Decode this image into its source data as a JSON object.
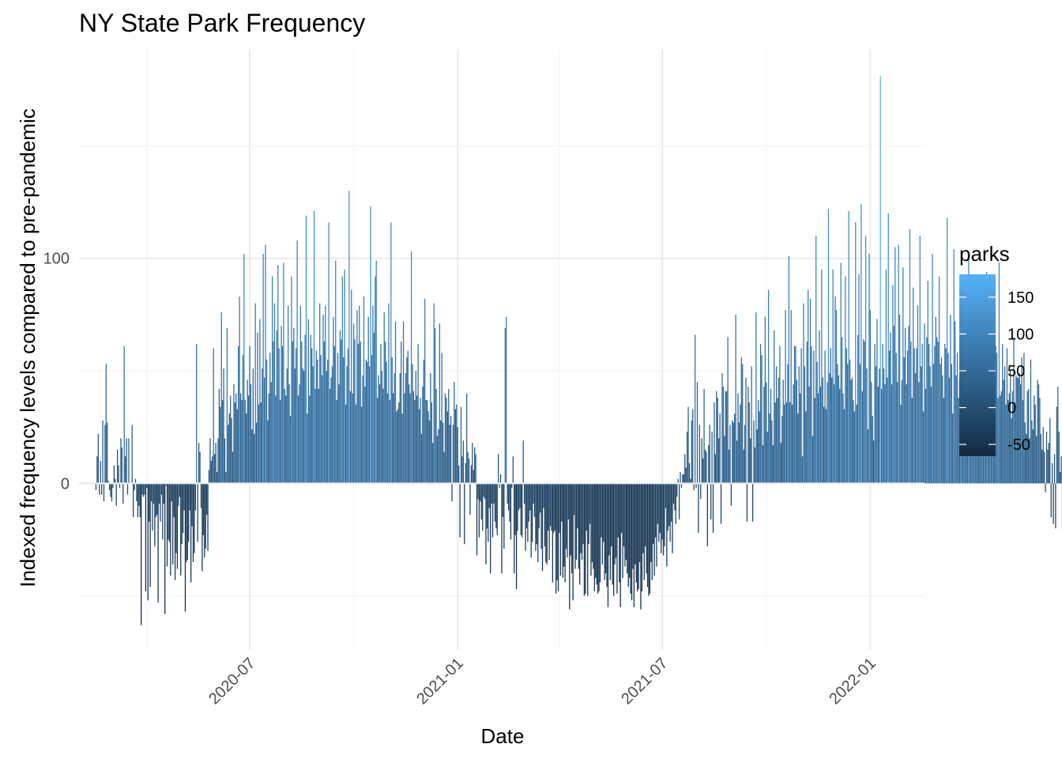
{
  "chart_data": {
    "type": "bar",
    "title": "NY State Park Frequency",
    "xlabel": "Date",
    "ylabel": "Indexed frequency levels compared to pre-pandemic",
    "x_tick_labels": [
      "2020-07",
      "2021-01",
      "2021-07",
      "2022-01"
    ],
    "x_tick_dates": [
      "2020-07-01",
      "2021-01-01",
      "2021-07-01",
      "2022-01-01"
    ],
    "y_tick_labels": [
      "0",
      "100"
    ],
    "y_tick_values": [
      0,
      100
    ],
    "ylim": [
      -74,
      193
    ],
    "xlim": [
      "2020-02-01",
      "2022-02-18"
    ],
    "grid": true,
    "legend": {
      "title": "parks",
      "position": "right",
      "labels": [
        "150",
        "100",
        "50",
        "0",
        "-50"
      ],
      "values": [
        150,
        100,
        50,
        0,
        -50
      ],
      "range": [
        -66,
        181
      ],
      "color_low": "#132b43",
      "color_high": "#56b1f7"
    },
    "date_start": "2020-02-16",
    "date_end": "2022-02-06",
    "values": [
      -3,
      12,
      22,
      -5,
      10,
      -5,
      28,
      -8,
      26,
      53,
      27,
      1,
      -3,
      -6,
      -8,
      -2,
      8,
      2,
      -10,
      15,
      8,
      -2,
      20,
      16,
      -9,
      61,
      12,
      20,
      -5,
      20,
      0,
      0,
      26,
      -15,
      -3,
      2,
      -8,
      -15,
      -10,
      -15,
      -63,
      -5,
      -6,
      -5,
      -48,
      -2,
      -52,
      -17,
      -46,
      -8,
      -21,
      -9,
      -28,
      -15,
      -14,
      -53,
      -9,
      -17,
      -5,
      -25,
      -9,
      -58,
      -1,
      -37,
      -25,
      -26,
      -41,
      -8,
      -36,
      -15,
      -43,
      -31,
      -38,
      -10,
      -6,
      -41,
      -27,
      -22,
      -12,
      -57,
      -35,
      -34,
      -26,
      -12,
      -44,
      -19,
      -35,
      -31,
      -12,
      62,
      -26,
      18,
      14,
      -11,
      -39,
      -23,
      -33,
      -29,
      -14,
      -30,
      6,
      20,
      10,
      12,
      60,
      13,
      18,
      5,
      20,
      42,
      34,
      76,
      37,
      51,
      20,
      5,
      69,
      26,
      31,
      39,
      29,
      14,
      44,
      36,
      40,
      33,
      61,
      83,
      40,
      37,
      57,
      102,
      37,
      31,
      46,
      39,
      61,
      44,
      24,
      51,
      22,
      80,
      27,
      67,
      35,
      73,
      36,
      51,
      102,
      47,
      106,
      55,
      28,
      40,
      58,
      45,
      92,
      63,
      80,
      39,
      68,
      97,
      60,
      37,
      70,
      61,
      98,
      42,
      39,
      51,
      79,
      44,
      30,
      92,
      63,
      69,
      51,
      60,
      108,
      39,
      44,
      79,
      63,
      51,
      50,
      66,
      119,
      31,
      73,
      39,
      66,
      60,
      52,
      121,
      42,
      59,
      55,
      42,
      80,
      57,
      48,
      75,
      63,
      79,
      50,
      55,
      116,
      42,
      47,
      52,
      74,
      61,
      99,
      37,
      58,
      44,
      68,
      64,
      92,
      56,
      95,
      35,
      52,
      60,
      130,
      41,
      86,
      40,
      71,
      64,
      35,
      77,
      62,
      79,
      63,
      34,
      48,
      83,
      43,
      55,
      54,
      74,
      52,
      123,
      57,
      79,
      67,
      92,
      99,
      38,
      48,
      44,
      62,
      50,
      42,
      76,
      63,
      54,
      40,
      80,
      37,
      116,
      56,
      40,
      49,
      72,
      32,
      33,
      36,
      49,
      63,
      31,
      72,
      40,
      49,
      56,
      59,
      44,
      40,
      103,
      53,
      41,
      37,
      50,
      39,
      62,
      33,
      38,
      22,
      43,
      55,
      82,
      37,
      37,
      32,
      28,
      49,
      36,
      18,
      80,
      69,
      42,
      21,
      24,
      71,
      28,
      58,
      27,
      14,
      40,
      38,
      32,
      42,
      26,
      30,
      -8,
      26,
      45,
      33,
      35,
      25,
      8,
      -24,
      34,
      12,
      19,
      -27,
      9,
      40,
      14,
      11,
      -14,
      8,
      18,
      6,
      16,
      13,
      -32,
      -7,
      -24,
      -8,
      -16,
      -21,
      -6,
      -7,
      -36,
      -20,
      -26,
      -11,
      -40,
      -9,
      -24,
      -9,
      -17,
      -20,
      -23,
      13,
      -2,
      4,
      -40,
      -15,
      -29,
      69,
      74,
      -9,
      -12,
      -17,
      -25,
      -2,
      12,
      -40,
      -23,
      -47,
      -21,
      -12,
      -11,
      -23,
      -24,
      19,
      -9,
      -30,
      -20,
      -26,
      -17,
      -12,
      -33,
      -26,
      -9,
      -15,
      -30,
      -27,
      -35,
      -20,
      -13,
      -29,
      -39,
      -11,
      -28,
      -35,
      -36,
      -21,
      -34,
      -19,
      -21,
      -44,
      -22,
      -21,
      -49,
      -43,
      -48,
      -22,
      -41,
      -17,
      -42,
      -37,
      -44,
      -29,
      -33,
      -16,
      -56,
      -32,
      -40,
      -52,
      -14,
      -38,
      -34,
      -20,
      -38,
      -45,
      -31,
      -34,
      -27,
      -50,
      -49,
      -21,
      -50,
      -27,
      -18,
      -41,
      -35,
      -38,
      -48,
      -42,
      -45,
      -49,
      -48,
      -44,
      -24,
      -36,
      -26,
      -43,
      -40,
      -46,
      -55,
      -32,
      -43,
      -28,
      -45,
      -50,
      -36,
      -33,
      -49,
      -24,
      -44,
      -55,
      -22,
      -42,
      -28,
      -37,
      -34,
      -40,
      -46,
      -42,
      -49,
      -52,
      -38,
      -55,
      -36,
      -44,
      -48,
      -47,
      -35,
      -56,
      -48,
      -31,
      -43,
      -28,
      -40,
      -46,
      -50,
      -49,
      -35,
      -43,
      -27,
      -41,
      -24,
      -37,
      -18,
      -26,
      -22,
      -31,
      -25,
      -32,
      -28,
      -11,
      -37,
      -21,
      -19,
      -26,
      -17,
      -31,
      -9,
      -12,
      -18,
      -6,
      2,
      -16,
      5,
      -2,
      4,
      4,
      13,
      7,
      23,
      34,
      9,
      2,
      28,
      33,
      -3,
      66,
      -2,
      45,
      -22,
      26,
      -7,
      20,
      11,
      42,
      15,
      14,
      -28,
      17,
      26,
      -16,
      23,
      -22,
      36,
      13,
      41,
      38,
      20,
      31,
      -18,
      49,
      43,
      21,
      41,
      41,
      65,
      15,
      26,
      -10,
      28,
      27,
      31,
      75,
      19,
      40,
      27,
      35,
      56,
      53,
      15,
      26,
      47,
      -17,
      43,
      36,
      20,
      52,
      -17,
      28,
      16,
      76,
      24,
      37,
      32,
      62,
      57,
      17,
      43,
      74,
      45,
      23,
      86,
      31,
      42,
      28,
      17,
      68,
      36,
      52,
      38,
      47,
      61,
      18,
      30,
      46,
      35,
      77,
      36,
      53,
      101,
      36,
      77,
      35,
      44,
      61,
      61,
      46,
      31,
      52,
      40,
      60,
      12,
      80,
      52,
      32,
      63,
      86,
      43,
      82,
      61,
      21,
      59,
      38,
      110,
      54,
      40,
      68,
      43,
      95,
      47,
      34,
      59,
      33,
      45,
      122,
      49,
      60,
      47,
      95,
      44,
      83,
      77,
      53,
      48,
      42,
      98,
      65,
      40,
      33,
      92,
      60,
      53,
      121,
      55,
      46,
      47,
      37,
      32,
      116,
      35,
      66,
      93,
      53,
      124,
      41,
      64,
      63,
      110,
      51,
      24,
      102,
      77,
      45,
      30,
      19,
      62,
      52,
      73,
      43,
      51,
      181,
      42,
      62,
      51,
      44,
      95,
      47,
      120,
      59,
      67,
      44,
      88,
      70,
      105,
      58,
      45,
      106,
      75,
      35,
      46,
      96,
      56,
      69,
      44,
      59,
      70,
      113,
      63,
      38,
      87,
      60,
      49,
      60,
      79,
      45,
      110,
      52,
      62,
      32,
      71,
      42,
      65,
      90,
      62,
      52,
      43,
      102,
      53,
      61,
      74,
      65,
      63,
      92,
      53,
      56,
      48,
      38,
      62,
      60,
      118,
      58,
      47,
      75,
      53,
      31,
      104,
      72,
      48,
      58,
      38,
      46,
      88,
      61,
      56,
      64,
      52,
      36,
      50,
      102,
      43,
      68,
      58,
      44,
      42,
      76,
      36,
      55,
      52,
      31,
      46,
      63,
      47,
      70,
      44,
      94,
      51,
      40,
      68,
      38,
      73,
      33,
      50,
      61,
      58,
      38,
      98,
      39,
      41,
      62,
      46,
      52,
      35,
      60,
      37,
      40,
      50,
      29,
      41,
      65,
      36,
      48,
      47,
      47,
      49,
      44,
      56,
      37,
      58,
      27,
      22,
      41,
      42,
      20,
      55,
      28,
      24,
      39,
      35,
      21,
      46,
      44,
      38,
      22,
      15,
      25,
      14,
      -4,
      23,
      15,
      18,
      29,
      -15,
      9,
      -18,
      13,
      -20,
      34,
      43,
      23,
      5,
      12,
      -20,
      24,
      14,
      6,
      -23,
      -4,
      11,
      23,
      -7,
      -6,
      18,
      -6,
      20,
      -6,
      1,
      -6,
      8,
      -16,
      15,
      6,
      -10,
      -8,
      -3,
      20,
      1,
      3,
      -4,
      8,
      -25,
      2,
      -2,
      -11,
      -13,
      -20,
      -4,
      -5,
      -11,
      -14,
      4,
      -11,
      -26,
      -5,
      -13,
      -7,
      -25,
      -10,
      -29,
      -32,
      -2,
      -20,
      -13,
      -35,
      -39,
      -40,
      -28,
      -14,
      -25,
      -40,
      -29,
      -8,
      -15,
      -38,
      -25,
      -25,
      -35,
      -20,
      -30,
      -33,
      -12,
      -23,
      -26,
      -19,
      -38,
      -32,
      -27,
      -24,
      -37,
      -34,
      -42,
      -12,
      -24,
      -18,
      -30,
      -14,
      -44,
      -32,
      -50,
      -35,
      -28,
      -17,
      -21,
      -23,
      -31,
      -21,
      -26,
      -38,
      -32,
      -24,
      -19,
      -23,
      -30,
      -28,
      -20,
      -22,
      -26,
      -21,
      -27,
      -19,
      -26,
      -30,
      -24
    ]
  }
}
